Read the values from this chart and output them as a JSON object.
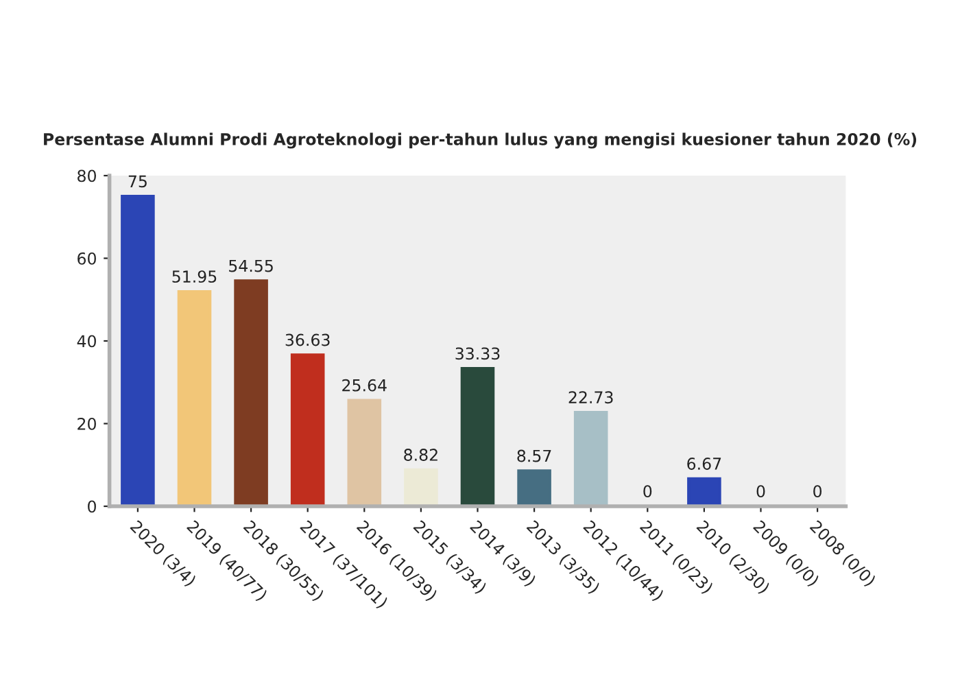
{
  "chart_data": {
    "type": "bar",
    "title": "Persentase Alumni Prodi Agroteknologi per-tahun lulus yang mengisi kuesioner tahun 2020 (%)",
    "categories": [
      "2020 (3/4)",
      "2019 (40/77)",
      "2018 (30/55)",
      "2017 (37/101)",
      "2016 (10/39)",
      "2015 (3/34)",
      "2014 (3/9)",
      "2013 (3/35)",
      "2012 (10/44)",
      "2011 (0/23)",
      "2010 (2/30)",
      "2009 (0/0)",
      "2008 (0/0)"
    ],
    "values": [
      75,
      51.95,
      54.55,
      36.63,
      25.64,
      8.82,
      33.33,
      8.57,
      22.73,
      0,
      6.67,
      0,
      0
    ],
    "colors": [
      "#2b45b5",
      "#f2c678",
      "#7e3c22",
      "#c02e1e",
      "#dfc4a3",
      "#ecead6",
      "#294a3c",
      "#466e82",
      "#a7bfc6",
      "#b5b8a0",
      "#2b45b5",
      "#c09a5a",
      "#7a2a1a"
    ],
    "ylim": [
      0,
      80
    ],
    "yticks": [
      0,
      20,
      40,
      60,
      80
    ],
    "data_labels": true
  }
}
